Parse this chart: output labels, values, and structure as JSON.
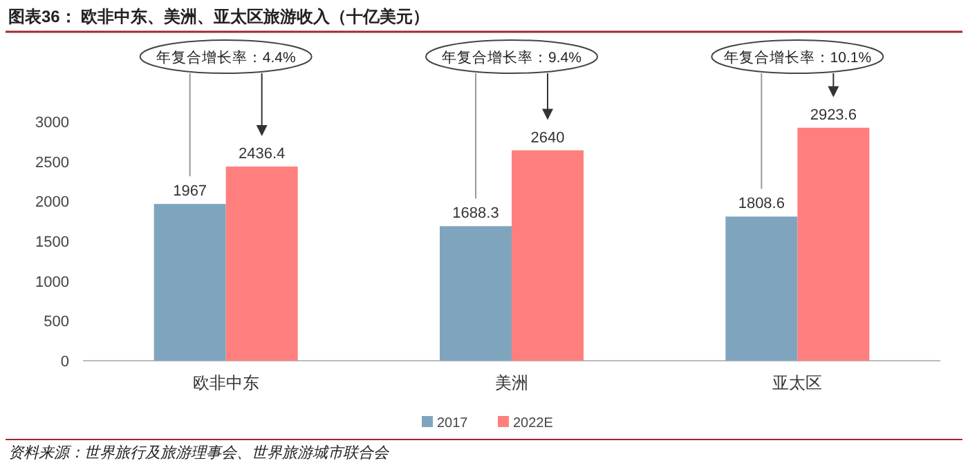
{
  "chart_data": {
    "type": "bar",
    "title": "图表36：  欧非中东、美洲、亚太区旅游收入（十亿美元）",
    "categories": [
      "欧非中东",
      "美洲",
      "亚太区"
    ],
    "series": [
      {
        "name": "2017",
        "color": "#7fa5be",
        "values": [
          1967,
          1688.3,
          1808.6
        ]
      },
      {
        "name": "2022E",
        "color": "#ff7f7f",
        "values": [
          2436.4,
          2640,
          2923.6
        ]
      }
    ],
    "ylim": [
      0,
      3000
    ],
    "yticks": [
      0,
      500,
      1000,
      1500,
      2000,
      2500,
      3000
    ],
    "grid": false,
    "legend": "bottom",
    "data_labels": true,
    "annotations": [
      "年复合增长率：4.4%",
      "年复合增长率：9.4%",
      "年复合增长率：10.1%",
      "资料来源：世界旅行及旅游理事会、世界旅游城市联合会"
    ]
  }
}
